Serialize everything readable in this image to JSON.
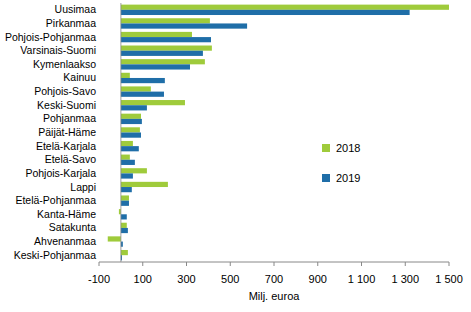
{
  "chart_data": {
    "type": "bar",
    "orientation": "horizontal",
    "categories": [
      "Uusimaa",
      "Pirkanmaa",
      "Pohjois-Pohjanmaa",
      "Varsinais-Suomi",
      "Kymenlaakso",
      "Kainuu",
      "Pohjois-Savo",
      "Keski-Suomi",
      "Pohjanmaa",
      "Päijät-Häme",
      "Etelä-Karjala",
      "Etelä-Savo",
      "Pohjois-Karjala",
      "Lappi",
      "Etelä-Pohjanmaa",
      "Kanta-Häme",
      "Satakunta",
      "Ahvenanmaa",
      "Keski-Pohjanmaa"
    ],
    "series": [
      {
        "name": "2018",
        "color": "#9fcb3b",
        "values": [
          1500,
          407,
          325,
          416,
          384,
          41,
          137,
          293,
          92,
          87,
          55,
          41,
          119,
          215,
          37,
          -9,
          27,
          -60,
          32
        ]
      },
      {
        "name": "2019",
        "color": "#1f6ea8",
        "values": [
          1320,
          577,
          412,
          375,
          316,
          201,
          197,
          119,
          96,
          92,
          82,
          64,
          55,
          50,
          37,
          27,
          32,
          9,
          5
        ]
      }
    ],
    "xlabel": "Milj. euroa",
    "xlim": [
      -100,
      1500
    ],
    "xticks": [
      -100,
      100,
      300,
      500,
      700,
      900,
      {
        "value": 1100,
        "label": "1 100"
      },
      {
        "value": 1300,
        "label": "1 300"
      },
      {
        "value": 1500,
        "label": "1 500"
      }
    ],
    "grid": false,
    "legend": "right"
  }
}
